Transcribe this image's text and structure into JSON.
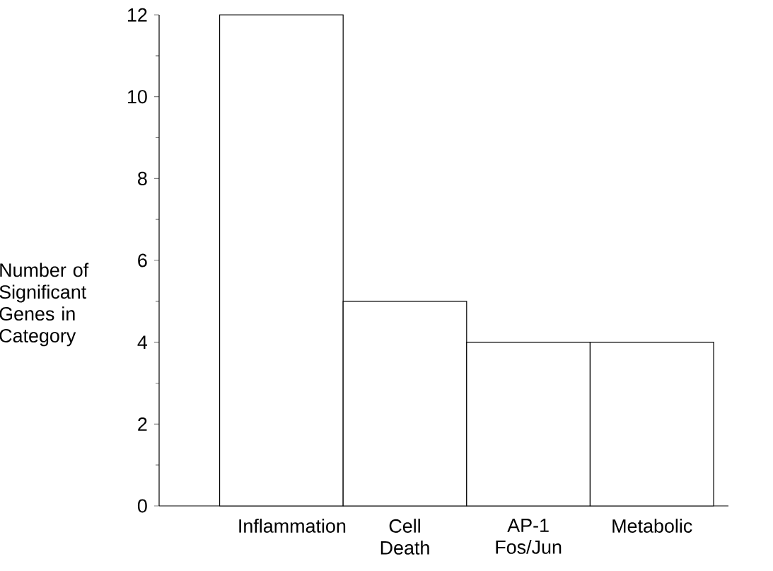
{
  "chart_data": {
    "type": "bar",
    "ylabel": "Number of Significant Genes in Category",
    "categories": [
      "Inflammation",
      "Cell Death",
      "AP-1 Fos/Jun",
      "Metabolic"
    ],
    "values": [
      12,
      5,
      4,
      4
    ],
    "color": "#ffffff",
    "ylim": [
      0,
      12
    ],
    "yticks": [
      0,
      2,
      4,
      6,
      8,
      10,
      12
    ]
  }
}
